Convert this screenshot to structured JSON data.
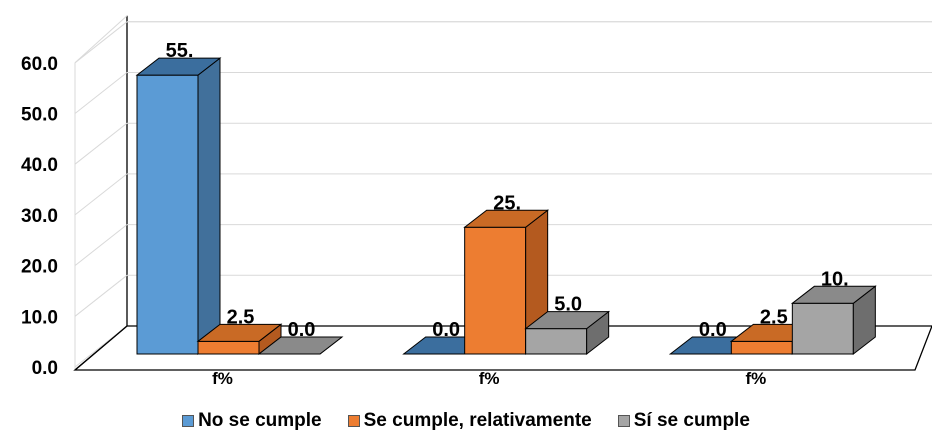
{
  "chart_data": {
    "type": "bar",
    "categories": [
      "f%",
      "f%",
      "f%"
    ],
    "series": [
      {
        "name": "No se cumple",
        "values": [
          55.0,
          0.0,
          0.0
        ],
        "labels": [
          "55.",
          "",
          "0.0"
        ],
        "color": "#5B9BD5",
        "side": "#41709B",
        "top": "#3B6E9E"
      },
      {
        "name": "Se cumple, relativamente",
        "values": [
          2.5,
          25.0,
          2.5
        ],
        "labels": [
          "2.5",
          "25.",
          "2.5"
        ],
        "color": "#ED7D31",
        "side": "#B45A1F",
        "top": "#C96A25"
      },
      {
        "name": "Sí se cumple",
        "values": [
          0.0,
          5.0,
          10.0
        ],
        "labels": [
          "0.0",
          "5.0",
          "10."
        ],
        "color": "#A5A5A5",
        "side": "#6E6E6E",
        "top": "#8A8A8A"
      }
    ],
    "category_labels_extra": [
      "0.0",
      "0.0"
    ],
    "yticks": [
      "0.0",
      "10.0",
      "20.0",
      "30.0",
      "40.0",
      "50.0",
      "60.0"
    ],
    "ylim": [
      0,
      60
    ],
    "grid": true,
    "legend_position": "bottom"
  }
}
